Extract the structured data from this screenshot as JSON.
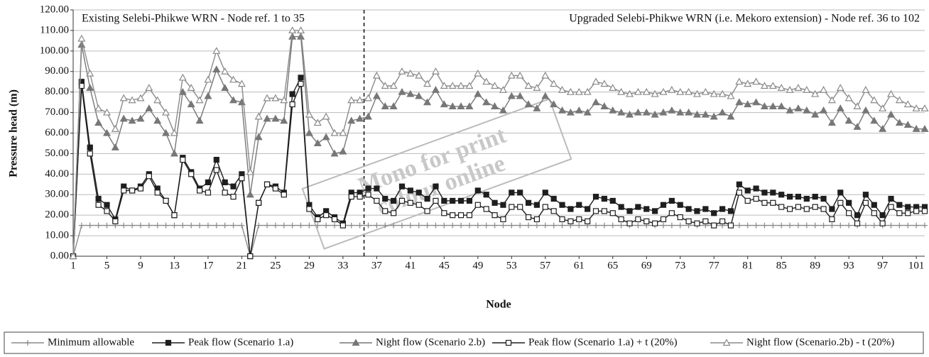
{
  "chart_data": {
    "type": "line",
    "xlabel": "Node",
    "ylabel": "Pressure head (m)",
    "annotations": [
      "Existing Selebi-Phikwe WRN - Node ref. 1 to 35",
      "Upgraded Selebi-Phikwe WRN (i.e. Mekoro extension) - Node ref. 36 to 102"
    ],
    "watermark": [
      "Mono for print",
      "colour online"
    ],
    "divider_at": 35.5,
    "x": [
      1,
      2,
      3,
      4,
      5,
      6,
      7,
      8,
      9,
      10,
      11,
      12,
      13,
      14,
      15,
      16,
      17,
      18,
      19,
      20,
      21,
      22,
      23,
      24,
      25,
      26,
      27,
      28,
      29,
      30,
      31,
      32,
      33,
      34,
      35,
      36,
      37,
      38,
      39,
      40,
      41,
      42,
      43,
      44,
      45,
      46,
      47,
      48,
      49,
      50,
      51,
      52,
      53,
      54,
      55,
      56,
      57,
      58,
      59,
      60,
      61,
      62,
      63,
      64,
      65,
      66,
      67,
      68,
      69,
      70,
      71,
      72,
      73,
      74,
      75,
      76,
      77,
      78,
      79,
      80,
      81,
      82,
      83,
      84,
      85,
      86,
      87,
      88,
      89,
      90,
      91,
      92,
      93,
      94,
      95,
      96,
      97,
      98,
      99,
      100,
      101,
      102
    ],
    "xlim": [
      1,
      102
    ],
    "xticks": [
      1,
      5,
      9,
      13,
      17,
      21,
      25,
      29,
      33,
      37,
      41,
      45,
      49,
      53,
      57,
      61,
      65,
      69,
      73,
      77,
      81,
      85,
      89,
      93,
      97,
      101
    ],
    "ylim": [
      0,
      120
    ],
    "yticks": [
      {
        "value": 0,
        "label": "0.00"
      },
      {
        "value": 10,
        "label": "10.00"
      },
      {
        "value": 20,
        "label": "20.00"
      },
      {
        "value": 30,
        "label": "30.00"
      },
      {
        "value": 40,
        "label": "40.00"
      },
      {
        "value": 50,
        "label": "50.00"
      },
      {
        "value": 60,
        "label": "60.00"
      },
      {
        "value": 70,
        "label": "70.00"
      },
      {
        "value": 80,
        "label": "80.00"
      },
      {
        "value": 90,
        "label": "90.00"
      },
      {
        "value": 100,
        "label": "100.00"
      },
      {
        "value": 110,
        "label": "110.00"
      },
      {
        "value": 120,
        "label": "120.00"
      }
    ],
    "grid": true,
    "legend": "bottom",
    "series": [
      {
        "name": "Minimum allowable",
        "color": "#8a8a8a",
        "marker": "plus",
        "hollow": false,
        "values": [
          0,
          15,
          15,
          15,
          15,
          15,
          15,
          15,
          15,
          15,
          15,
          15,
          15,
          15,
          15,
          15,
          15,
          15,
          15,
          15,
          15,
          0,
          15,
          15,
          15,
          15,
          15,
          15,
          15,
          15,
          15,
          15,
          15,
          15,
          15,
          15,
          15,
          15,
          15,
          15,
          15,
          15,
          15,
          15,
          15,
          15,
          15,
          15,
          15,
          15,
          15,
          15,
          15,
          15,
          15,
          15,
          15,
          15,
          15,
          15,
          15,
          15,
          15,
          15,
          15,
          15,
          15,
          15,
          15,
          15,
          15,
          15,
          15,
          15,
          15,
          15,
          15,
          15,
          15,
          15,
          15,
          15,
          15,
          15,
          15,
          15,
          15,
          15,
          15,
          15,
          15,
          15,
          15,
          15,
          15,
          15,
          15,
          15,
          15,
          15,
          15,
          15
        ]
      },
      {
        "name": "Peak flow (Scenario 1.a)",
        "color": "#1e1e1e",
        "marker": "square",
        "hollow": false,
        "values": [
          0,
          85,
          53,
          28,
          25,
          18,
          34,
          32,
          34,
          40,
          33,
          27,
          20,
          48,
          41,
          33,
          36,
          47,
          36,
          34,
          40,
          0,
          26,
          35,
          34,
          31,
          79,
          87,
          25,
          19,
          22,
          19,
          16,
          31,
          31,
          33,
          33,
          28,
          27,
          34,
          32,
          31,
          28,
          34,
          27,
          27,
          27,
          27,
          32,
          30,
          26,
          25,
          31,
          31,
          26,
          25,
          31,
          28,
          25,
          23,
          25,
          23,
          29,
          28,
          27,
          24,
          22,
          24,
          23,
          22,
          25,
          27,
          25,
          23,
          22,
          23,
          21,
          23,
          22,
          35,
          32,
          33,
          31,
          31,
          30,
          29,
          29,
          28,
          29,
          28,
          23,
          31,
          26,
          20,
          30,
          25,
          20,
          28,
          25,
          24,
          24,
          24
        ]
      },
      {
        "name": "Night flow (Scenario 2.b)",
        "color": "#777777",
        "marker": "triangle",
        "hollow": false,
        "values": [
          0,
          103,
          82,
          65,
          60,
          53,
          67,
          66,
          67,
          72,
          66,
          60,
          50,
          80,
          74,
          66,
          78,
          91,
          82,
          76,
          75,
          30,
          58,
          67,
          67,
          66,
          107,
          107,
          60,
          55,
          58,
          50,
          51,
          66,
          67,
          68,
          78,
          73,
          73,
          80,
          79,
          78,
          75,
          81,
          74,
          73,
          73,
          73,
          79,
          75,
          73,
          71,
          78,
          78,
          74,
          72,
          78,
          74,
          71,
          70,
          71,
          70,
          75,
          73,
          71,
          70,
          69,
          70,
          70,
          69,
          70,
          71,
          70,
          70,
          69,
          69,
          68,
          70,
          68,
          75,
          74,
          75,
          73,
          73,
          73,
          71,
          72,
          71,
          69,
          71,
          65,
          72,
          66,
          63,
          71,
          66,
          62,
          69,
          65,
          64,
          62,
          62
        ]
      },
      {
        "name": "Peak flow (Scenario 1.a) + t (20%)",
        "color": "#1e1e1e",
        "marker": "square",
        "hollow": true,
        "values": [
          0,
          83,
          50,
          25,
          22,
          17,
          32,
          32,
          33,
          39,
          31,
          27,
          20,
          47,
          40,
          32,
          31,
          42,
          31,
          29,
          38,
          0,
          26,
          35,
          33,
          30,
          74,
          84,
          23,
          18,
          20,
          18,
          15,
          29,
          29,
          30,
          27,
          22,
          21,
          27,
          26,
          25,
          22,
          27,
          21,
          20,
          20,
          20,
          25,
          23,
          20,
          18,
          24,
          24,
          19,
          18,
          24,
          22,
          18,
          17,
          18,
          17,
          22,
          22,
          21,
          18,
          16,
          18,
          17,
          16,
          18,
          21,
          19,
          17,
          16,
          17,
          15,
          17,
          15,
          31,
          27,
          28,
          26,
          26,
          24,
          23,
          24,
          23,
          24,
          23,
          18,
          26,
          21,
          16,
          26,
          21,
          16,
          24,
          21,
          21,
          22,
          22
        ]
      },
      {
        "name": "Night flow (Scenario.2b) - t (20%)",
        "color": "#8a8a8a",
        "marker": "triangle",
        "hollow": true,
        "values": [
          0,
          106,
          89,
          72,
          70,
          62,
          77,
          76,
          77,
          82,
          76,
          70,
          60,
          87,
          82,
          76,
          86,
          100,
          90,
          86,
          84,
          41,
          68,
          77,
          77,
          76,
          110,
          110,
          69,
          65,
          68,
          60,
          60,
          76,
          76,
          77,
          88,
          83,
          83,
          90,
          89,
          88,
          84,
          90,
          83,
          83,
          83,
          83,
          89,
          85,
          83,
          81,
          88,
          88,
          83,
          82,
          88,
          84,
          81,
          80,
          80,
          80,
          85,
          84,
          82,
          80,
          79,
          80,
          80,
          79,
          80,
          81,
          80,
          80,
          79,
          80,
          79,
          79,
          78,
          85,
          84,
          85,
          83,
          83,
          82,
          81,
          82,
          81,
          79,
          81,
          76,
          82,
          77,
          73,
          81,
          76,
          72,
          79,
          76,
          74,
          72,
          72
        ]
      }
    ]
  }
}
